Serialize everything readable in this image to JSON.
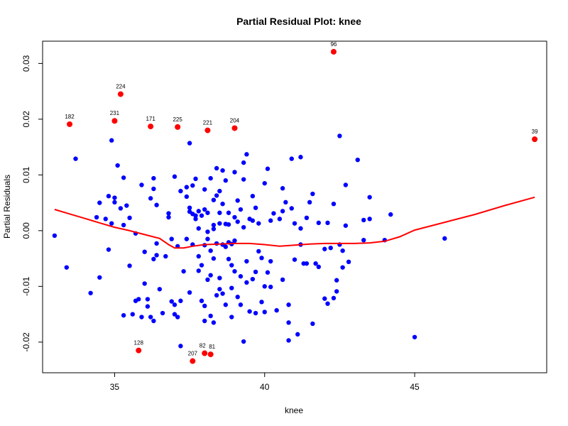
{
  "chart_data": {
    "type": "scatter",
    "title": "Partial Residual Plot: knee",
    "xlabel": "knee",
    "ylabel": "Partial Residuals",
    "xlim": [
      32.6,
      49.4
    ],
    "ylim": [
      -0.0255,
      0.034
    ],
    "x_ticks": [
      35,
      40,
      45
    ],
    "x_tick_labels": [
      "35",
      "40",
      "45"
    ],
    "y_ticks": [
      -0.02,
      -0.01,
      0.0,
      0.01,
      0.02,
      0.03
    ],
    "y_tick_labels": [
      "-0.02",
      "-0.01",
      "0.00",
      "0.01",
      "0.02",
      "0.03"
    ],
    "grid": false,
    "colors": {
      "normal_points": "#0000ff",
      "outlier_points": "#ff0000",
      "smooth_line": "#ff0000"
    },
    "outliers": [
      {
        "label": "96",
        "x": 42.3,
        "y": 0.0321
      },
      {
        "label": "224",
        "x": 35.2,
        "y": 0.0245
      },
      {
        "label": "182",
        "x": 33.5,
        "y": 0.0191
      },
      {
        "label": "231",
        "x": 35.0,
        "y": 0.0197
      },
      {
        "label": "171",
        "x": 36.2,
        "y": 0.0187
      },
      {
        "label": "225",
        "x": 37.1,
        "y": 0.0186
      },
      {
        "label": "221",
        "x": 38.1,
        "y": 0.018
      },
      {
        "label": "204",
        "x": 39.0,
        "y": 0.0184
      },
      {
        "label": "39",
        "x": 49.0,
        "y": 0.0164
      },
      {
        "label": "128",
        "x": 35.8,
        "y": -0.0215
      },
      {
        "label": "207",
        "x": 37.6,
        "y": -0.0234
      },
      {
        "label": "82",
        "x": 38.0,
        "y": -0.022
      },
      {
        "label": "81",
        "x": 38.2,
        "y": -0.0222
      }
    ],
    "points": [
      [
        33.0,
        -0.0009
      ],
      [
        33.4,
        -0.0066
      ],
      [
        33.7,
        0.0129
      ],
      [
        34.2,
        -0.0112
      ],
      [
        34.4,
        0.0024
      ],
      [
        34.5,
        0.005
      ],
      [
        34.5,
        -0.0084
      ],
      [
        34.7,
        0.0021
      ],
      [
        34.8,
        0.0062
      ],
      [
        34.8,
        -0.0034
      ],
      [
        34.9,
        0.0162
      ],
      [
        34.9,
        0.0013
      ],
      [
        35.0,
        0.0059
      ],
      [
        35.0,
        0.0051
      ],
      [
        35.1,
        0.0117
      ],
      [
        35.2,
        0.004
      ],
      [
        35.3,
        0.0095
      ],
      [
        35.3,
        0.001
      ],
      [
        35.4,
        0.0045
      ],
      [
        35.5,
        -0.0063
      ],
      [
        35.3,
        -0.0152
      ],
      [
        35.5,
        0.0023
      ],
      [
        35.6,
        -0.015
      ],
      [
        35.7,
        -0.0126
      ],
      [
        35.7,
        -0.0005
      ],
      [
        35.8,
        -0.0123
      ],
      [
        35.9,
        -0.0155
      ],
      [
        35.9,
        0.0082
      ],
      [
        36.0,
        -0.0038
      ],
      [
        36.0,
        -0.0095
      ],
      [
        36.1,
        -0.0123
      ],
      [
        36.1,
        -0.0136
      ],
      [
        36.2,
        0.0058
      ],
      [
        36.2,
        -0.0155
      ],
      [
        36.3,
        -0.0162
      ],
      [
        36.3,
        -0.0051
      ],
      [
        36.3,
        0.0094
      ],
      [
        36.3,
        0.0075
      ],
      [
        36.4,
        0.0046
      ],
      [
        36.4,
        -0.0023
      ],
      [
        36.4,
        -0.0044
      ],
      [
        36.5,
        -0.0105
      ],
      [
        36.6,
        -0.0148
      ],
      [
        36.7,
        -0.0046
      ],
      [
        36.8,
        0.0024
      ],
      [
        36.8,
        0.0031
      ],
      [
        36.9,
        -0.0015
      ],
      [
        36.9,
        -0.0127
      ],
      [
        37.0,
        0.0097
      ],
      [
        37.0,
        -0.0133
      ],
      [
        37.0,
        -0.015
      ],
      [
        37.1,
        -0.0155
      ],
      [
        37.1,
        -0.0028
      ],
      [
        37.2,
        -0.0126
      ],
      [
        37.2,
        -0.0207
      ],
      [
        37.2,
        0.0071
      ],
      [
        37.3,
        -0.0073
      ],
      [
        37.4,
        0.0061
      ],
      [
        37.4,
        0.0078
      ],
      [
        37.4,
        -0.0015
      ],
      [
        37.5,
        0.0157
      ],
      [
        37.5,
        0.0034
      ],
      [
        37.5,
        0.0041
      ],
      [
        37.5,
        -0.0111
      ],
      [
        37.6,
        0.003
      ],
      [
        37.6,
        0.0081
      ],
      [
        37.6,
        -0.0025
      ],
      [
        37.7,
        0.0027
      ],
      [
        37.7,
        0.0021
      ],
      [
        37.7,
        0.0093
      ],
      [
        37.8,
        0.0035
      ],
      [
        37.8,
        0.0004
      ],
      [
        37.8,
        -0.0046
      ],
      [
        37.8,
        -0.0072
      ],
      [
        37.9,
        -0.0126
      ],
      [
        37.9,
        -0.0062
      ],
      [
        37.9,
        0.0027
      ],
      [
        38.0,
        -0.0135
      ],
      [
        38.0,
        -0.0162
      ],
      [
        38.0,
        0.0038
      ],
      [
        38.0,
        0.0074
      ],
      [
        38.0,
        -0.0026
      ],
      [
        38.1,
        -0.0015
      ],
      [
        38.1,
        0.0032
      ],
      [
        38.1,
        -0.0002
      ],
      [
        38.1,
        -0.0088
      ],
      [
        38.2,
        -0.0036
      ],
      [
        38.2,
        -0.008
      ],
      [
        38.2,
        0.0094
      ],
      [
        38.2,
        -0.0153
      ],
      [
        38.3,
        0.0003
      ],
      [
        38.3,
        0.001
      ],
      [
        38.3,
        -0.0165
      ],
      [
        38.3,
        -0.005
      ],
      [
        38.3,
        0.0055
      ],
      [
        38.4,
        0.0063
      ],
      [
        38.4,
        0.0112
      ],
      [
        38.4,
        -0.0023
      ],
      [
        38.4,
        -0.0116
      ],
      [
        38.5,
        -0.0105
      ],
      [
        38.5,
        0.0013
      ],
      [
        38.5,
        -0.0085
      ],
      [
        38.5,
        0.0032
      ],
      [
        38.5,
        0.0071
      ],
      [
        38.6,
        0.0108
      ],
      [
        38.6,
        -0.0025
      ],
      [
        38.6,
        -0.0113
      ],
      [
        38.6,
        0.0048
      ],
      [
        38.7,
        -0.0133
      ],
      [
        38.7,
        -0.0029
      ],
      [
        38.7,
        0.0012
      ],
      [
        38.7,
        0.009
      ],
      [
        38.8,
        -0.0021
      ],
      [
        38.8,
        0.0032
      ],
      [
        38.8,
        0.0011
      ],
      [
        38.8,
        -0.0051
      ],
      [
        38.9,
        -0.0062
      ],
      [
        38.9,
        -0.0103
      ],
      [
        38.9,
        -0.0155
      ],
      [
        38.9,
        -0.0024
      ],
      [
        39.0,
        0.0105
      ],
      [
        39.0,
        0.0024
      ],
      [
        39.0,
        -0.0018
      ],
      [
        39.0,
        -0.0073
      ],
      [
        39.1,
        0.0016
      ],
      [
        39.1,
        -0.0119
      ],
      [
        39.1,
        0.0054
      ],
      [
        39.2,
        -0.0133
      ],
      [
        39.2,
        -0.0082
      ],
      [
        39.2,
        0.0038
      ],
      [
        39.3,
        0.0092
      ],
      [
        39.3,
        0.0122
      ],
      [
        39.3,
        -0.0199
      ],
      [
        39.3,
        0.0006
      ],
      [
        39.4,
        0.0137
      ],
      [
        39.4,
        -0.0055
      ],
      [
        39.4,
        -0.0093
      ],
      [
        39.5,
        -0.0145
      ],
      [
        39.5,
        0.0021
      ],
      [
        39.6,
        0.0018
      ],
      [
        39.6,
        -0.0087
      ],
      [
        39.6,
        0.0062
      ],
      [
        39.7,
        0.0041
      ],
      [
        39.7,
        -0.0148
      ],
      [
        39.7,
        -0.0074
      ],
      [
        39.8,
        0.0013
      ],
      [
        39.8,
        -0.0037
      ],
      [
        39.9,
        -0.0128
      ],
      [
        39.9,
        -0.0049
      ],
      [
        40.0,
        -0.0146
      ],
      [
        40.0,
        -0.01
      ],
      [
        40.0,
        0.0085
      ],
      [
        40.1,
        0.0111
      ],
      [
        40.1,
        -0.0075
      ],
      [
        40.2,
        -0.0055
      ],
      [
        40.2,
        0.0018
      ],
      [
        40.2,
        -0.0101
      ],
      [
        40.3,
        0.0031
      ],
      [
        40.4,
        -0.0143
      ],
      [
        40.5,
        0.0021
      ],
      [
        40.6,
        0.0035
      ],
      [
        40.6,
        -0.0088
      ],
      [
        40.6,
        0.0076
      ],
      [
        40.7,
        0.0051
      ],
      [
        40.8,
        -0.0197
      ],
      [
        40.8,
        -0.0133
      ],
      [
        40.8,
        -0.0165
      ],
      [
        40.9,
        0.0129
      ],
      [
        40.9,
        0.004
      ],
      [
        41.0,
        -0.0052
      ],
      [
        41.0,
        0.0013
      ],
      [
        41.1,
        -0.0186
      ],
      [
        41.2,
        0.0132
      ],
      [
        41.2,
        -0.0025
      ],
      [
        41.2,
        0.0004
      ],
      [
        41.3,
        -0.0059
      ],
      [
        41.4,
        -0.0059
      ],
      [
        41.4,
        0.0023
      ],
      [
        41.5,
        0.0051
      ],
      [
        41.6,
        0.0066
      ],
      [
        41.6,
        -0.0167
      ],
      [
        41.7,
        -0.0059
      ],
      [
        41.8,
        0.0014
      ],
      [
        41.8,
        -0.0065
      ],
      [
        42.0,
        -0.0033
      ],
      [
        42.0,
        -0.0122
      ],
      [
        42.1,
        0.0014
      ],
      [
        42.1,
        -0.0131
      ],
      [
        42.2,
        -0.0031
      ],
      [
        42.3,
        0.0048
      ],
      [
        42.3,
        -0.0121
      ],
      [
        42.4,
        -0.0089
      ],
      [
        42.4,
        -0.0109
      ],
      [
        42.5,
        0.017
      ],
      [
        42.5,
        -0.0025
      ],
      [
        42.6,
        -0.0066
      ],
      [
        42.6,
        -0.0036
      ],
      [
        42.7,
        0.0082
      ],
      [
        42.7,
        0.0009
      ],
      [
        42.8,
        -0.0056
      ],
      [
        43.1,
        0.0127
      ],
      [
        43.3,
        0.0019
      ],
      [
        43.3,
        -0.0017
      ],
      [
        43.5,
        0.006
      ],
      [
        43.5,
        0.0021
      ],
      [
        44.0,
        -0.0017
      ],
      [
        44.2,
        0.0029
      ],
      [
        45.0,
        -0.0191
      ],
      [
        46.0,
        -0.0014
      ]
    ],
    "smooth": [
      [
        33.0,
        0.0038
      ],
      [
        33.5,
        0.003
      ],
      [
        34.0,
        0.0022
      ],
      [
        34.5,
        0.0014
      ],
      [
        35.0,
        0.0006
      ],
      [
        35.5,
        0.0
      ],
      [
        36.0,
        -0.0007
      ],
      [
        36.5,
        -0.0014
      ],
      [
        36.8,
        -0.0025
      ],
      [
        37.0,
        -0.0031
      ],
      [
        37.3,
        -0.0031
      ],
      [
        37.6,
        -0.0028
      ],
      [
        38.0,
        -0.0025
      ],
      [
        38.5,
        -0.0024
      ],
      [
        39.0,
        -0.0023
      ],
      [
        39.5,
        -0.0023
      ],
      [
        40.0,
        -0.0025
      ],
      [
        40.5,
        -0.0028
      ],
      [
        41.0,
        -0.0026
      ],
      [
        41.5,
        -0.0024
      ],
      [
        42.0,
        -0.0023
      ],
      [
        42.5,
        -0.0023
      ],
      [
        43.0,
        -0.0023
      ],
      [
        43.5,
        -0.0022
      ],
      [
        44.0,
        -0.0019
      ],
      [
        44.5,
        -0.0011
      ],
      [
        45.0,
        0.0001
      ],
      [
        46.0,
        0.0015
      ],
      [
        47.0,
        0.0029
      ],
      [
        48.0,
        0.0045
      ],
      [
        49.0,
        0.006
      ]
    ]
  }
}
